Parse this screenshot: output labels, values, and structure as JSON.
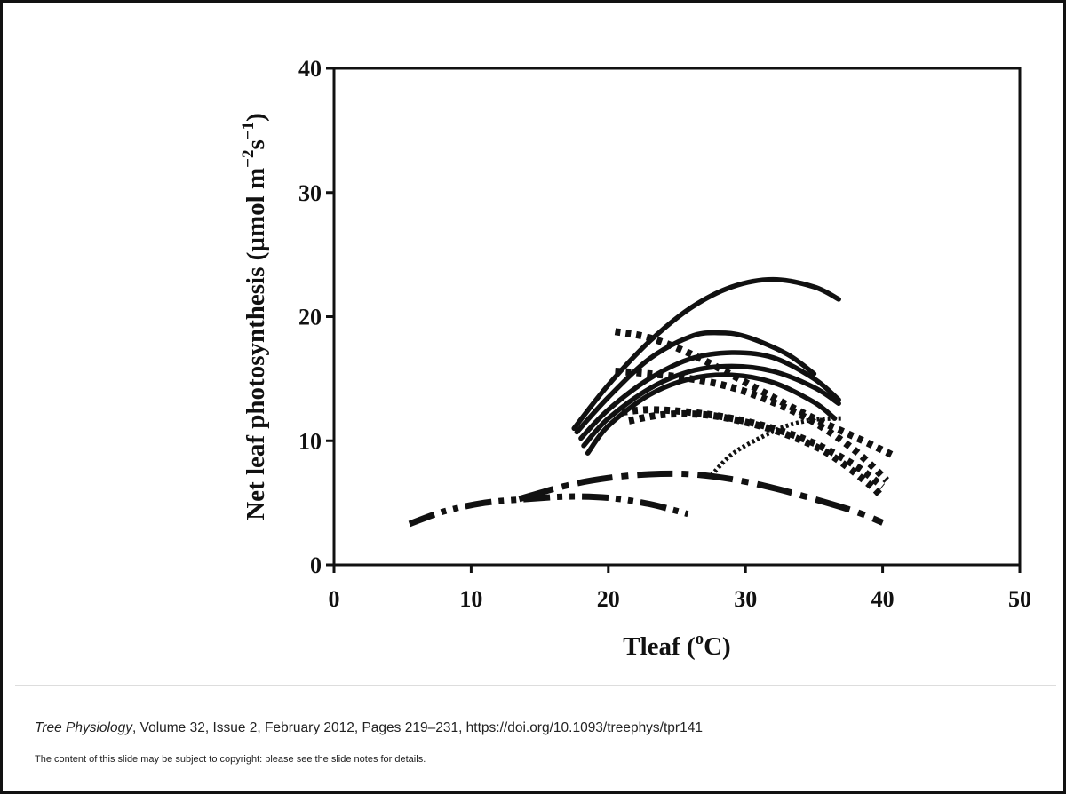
{
  "chart_data": {
    "type": "line",
    "xlabel": "Tleaf (oC)",
    "ylabel": "Net leaf photosynthesis (µmol m−2s−1)",
    "xlim": [
      0,
      50
    ],
    "ylim": [
      0,
      40
    ],
    "xticks": [
      0,
      10,
      20,
      30,
      40,
      50
    ],
    "yticks": [
      0,
      10,
      20,
      30,
      40
    ],
    "grid": false,
    "legend": "none",
    "series": [
      {
        "style": "solid",
        "x": [
          17.5,
          20,
          23,
          26,
          29,
          32,
          35,
          36.8
        ],
        "y": [
          11,
          14.5,
          18,
          20.7,
          22.4,
          23,
          22.4,
          21.4
        ]
      },
      {
        "style": "solid",
        "x": [
          17.7,
          20,
          23,
          26,
          28,
          30,
          33,
          35
        ],
        "y": [
          10.7,
          13.5,
          16.6,
          18.4,
          18.7,
          18.4,
          17,
          15.4
        ]
      },
      {
        "style": "solid",
        "x": [
          18,
          20,
          23,
          26,
          29,
          32,
          35,
          36.8
        ],
        "y": [
          10.2,
          12.5,
          15,
          16.6,
          17.1,
          16.7,
          15,
          13.3
        ]
      },
      {
        "style": "solid",
        "x": [
          18.2,
          20,
          23,
          26,
          29,
          32,
          35,
          36.8
        ],
        "y": [
          9.6,
          11.8,
          14.2,
          15.6,
          16,
          15.6,
          14.3,
          13
        ]
      },
      {
        "style": "solid",
        "x": [
          18.5,
          20,
          23,
          26,
          29,
          32,
          35,
          36.5
        ],
        "y": [
          9,
          11.2,
          13.7,
          15,
          15.3,
          14.7,
          13.1,
          11.8
        ]
      },
      {
        "style": "dotted-heavy",
        "x": [
          20.5,
          23,
          26,
          29,
          32,
          35,
          38,
          40.8
        ],
        "y": [
          18.8,
          18.3,
          17,
          15.3,
          13.5,
          11.8,
          10.3,
          8.8
        ]
      },
      {
        "style": "dotted-heavy",
        "x": [
          20.5,
          23,
          26,
          29,
          32,
          35,
          38,
          40.3
        ],
        "y": [
          15.6,
          15.4,
          15,
          14.3,
          13.1,
          11.5,
          9.2,
          6.8
        ]
      },
      {
        "style": "dotted-heavy",
        "x": [
          21,
          23,
          26,
          29,
          32,
          35,
          38,
          40
        ],
        "y": [
          12.3,
          12.5,
          12.3,
          11.8,
          11,
          9.8,
          8,
          6.3
        ]
      },
      {
        "style": "dotted-heavy",
        "x": [
          21.5,
          24,
          27,
          30,
          33,
          36,
          39,
          40
        ],
        "y": [
          11.6,
          12.1,
          12.1,
          11.5,
          10.5,
          9,
          6.5,
          5.4
        ]
      },
      {
        "style": "dotted-fine",
        "x": [
          27.5,
          29,
          31,
          33,
          35,
          37
        ],
        "y": [
          7.2,
          8.9,
          10.2,
          11.2,
          11.7,
          11.8
        ]
      },
      {
        "style": "dash-dot-dot",
        "x": [
          5.5,
          8,
          11,
          14,
          17,
          20,
          23,
          25.8
        ],
        "y": [
          3.3,
          4.3,
          5,
          5.3,
          5.5,
          5.4,
          4.9,
          4.1
        ]
      },
      {
        "style": "dash-dot",
        "x": [
          13.5,
          17,
          20,
          23,
          26,
          29,
          32,
          35,
          38,
          40
        ],
        "y": [
          5.3,
          6.4,
          7,
          7.3,
          7.3,
          6.9,
          6.2,
          5.3,
          4.3,
          3.4
        ]
      }
    ]
  },
  "footer": {
    "journal": "Tree Physiology",
    "citation_rest": ", Volume 32, Issue 2, February 2012, Pages 219–231, https://doi.org/10.1093/treephys/tpr141",
    "copyright": "The content of this slide may be subject to copyright: please see the slide notes for details."
  }
}
